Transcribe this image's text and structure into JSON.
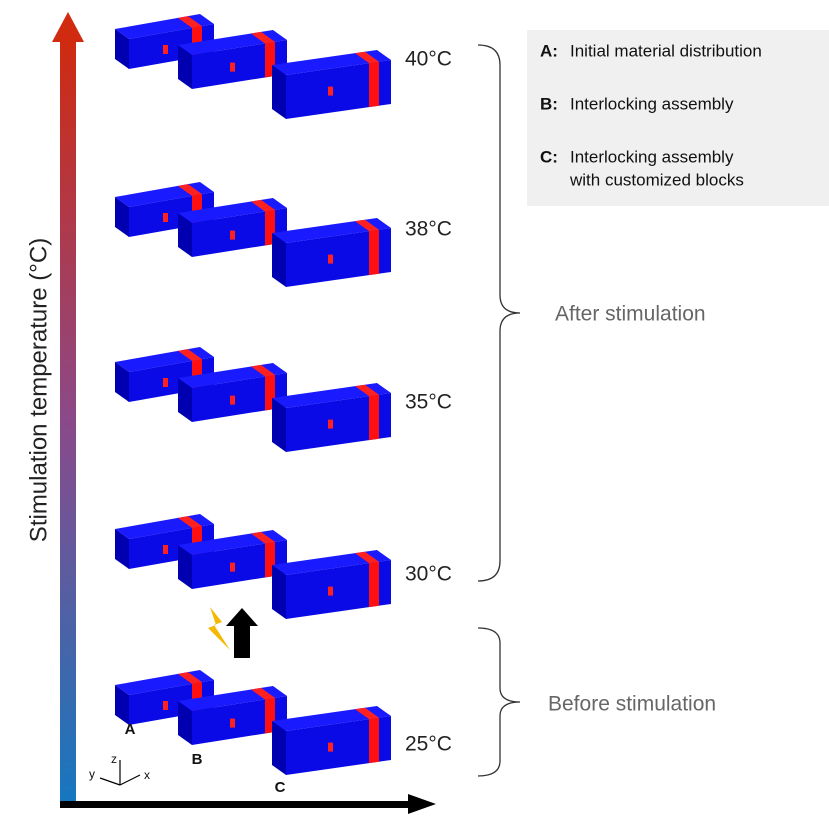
{
  "axis_label": "Stimulation temperature (°C)",
  "temperatures": [
    "40°C",
    "38°C",
    "35°C",
    "30°C",
    "25°C"
  ],
  "block_labels": [
    "A",
    "B",
    "C"
  ],
  "axes_triad": [
    "z",
    "y",
    "x"
  ],
  "legend": [
    {
      "key": "A:",
      "lines": [
        "Initial material distribution"
      ]
    },
    {
      "key": "B:",
      "lines": [
        "Interlocking assembly"
      ]
    },
    {
      "key": "C:",
      "lines": [
        "Interlocking assembly",
        "with customized blocks"
      ]
    }
  ],
  "brace_labels": [
    "After stimulation",
    "Before stimulation"
  ]
}
